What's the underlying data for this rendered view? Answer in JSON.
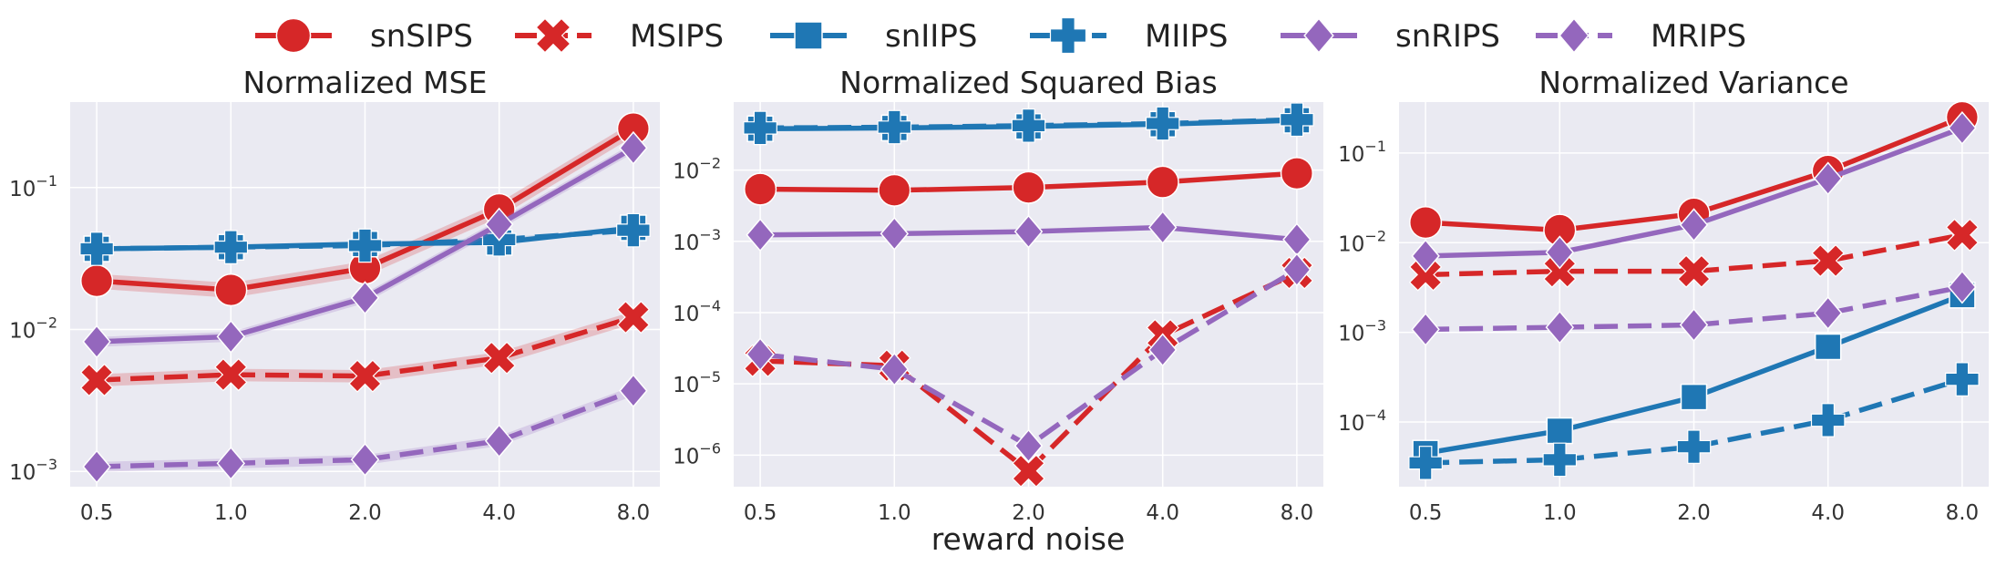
{
  "legend": [
    {
      "key": "snSIPS",
      "label": "snSIPS"
    },
    {
      "key": "MSIPS",
      "label": "MSIPS"
    },
    {
      "key": "snIIPS",
      "label": "snIIPS"
    },
    {
      "key": "MIIPS",
      "label": "MIIPS"
    },
    {
      "key": "snRIPS",
      "label": "snRIPS"
    },
    {
      "key": "MRIPS",
      "label": "MRIPS"
    }
  ],
  "series_style": {
    "snSIPS": {
      "color": "#d62728",
      "dash": "solid",
      "marker": "circle"
    },
    "MSIPS": {
      "color": "#d62728",
      "dash": "dashed",
      "marker": "x"
    },
    "snIIPS": {
      "color": "#1f77b4",
      "dash": "solid",
      "marker": "square"
    },
    "MIIPS": {
      "color": "#1f77b4",
      "dash": "dashed",
      "marker": "plus"
    },
    "snRIPS": {
      "color": "#9467bd",
      "dash": "solid",
      "marker": "diamond"
    },
    "MRIPS": {
      "color": "#9467bd",
      "dash": "dashed",
      "marker": "diamond"
    }
  },
  "colors": {
    "panel_bg": "#eaeaf2",
    "grid": "#ffffff"
  },
  "shared_xlabel": "reward noise",
  "chart_data": [
    {
      "type": "line",
      "title": "Normalized MSE",
      "yscale": "log",
      "ylim": [
        0.00078,
        0.4
      ],
      "yticks": [
        {
          "v": 0.001,
          "base": "10",
          "exp": "−3"
        },
        {
          "v": 0.01,
          "base": "10",
          "exp": "−2"
        },
        {
          "v": 0.1,
          "base": "10",
          "exp": "−1"
        }
      ],
      "categories": [
        "0.5",
        "1.0",
        "2.0",
        "4.0",
        "8.0"
      ],
      "series": [
        {
          "name": "snSIPS",
          "values": [
            0.022,
            0.019,
            0.027,
            0.07,
            0.26
          ],
          "band": 0.12
        },
        {
          "name": "MSIPS",
          "values": [
            0.0044,
            0.0048,
            0.0047,
            0.0063,
            0.0122
          ],
          "band": 0.1
        },
        {
          "name": "snIIPS",
          "values": [
            0.037,
            0.038,
            0.04,
            0.041,
            0.052
          ],
          "band": 0.03
        },
        {
          "name": "MIIPS",
          "values": [
            0.037,
            0.038,
            0.039,
            0.043,
            0.05
          ],
          "band": 0.03
        },
        {
          "name": "snRIPS",
          "values": [
            0.0082,
            0.0089,
            0.0167,
            0.055,
            0.19
          ],
          "band": 0.08
        },
        {
          "name": "MRIPS",
          "values": [
            0.00108,
            0.00114,
            0.00121,
            0.00164,
            0.0037
          ],
          "band": 0.08
        }
      ]
    },
    {
      "type": "line",
      "title": "Normalized Squared Bias",
      "yscale": "log",
      "ylim": [
        3.6e-07,
        0.09
      ],
      "yticks": [
        {
          "v": 1e-06,
          "base": "10",
          "exp": "−6"
        },
        {
          "v": 1e-05,
          "base": "10",
          "exp": "−5"
        },
        {
          "v": 0.0001,
          "base": "10",
          "exp": "−4"
        },
        {
          "v": 0.001,
          "base": "10",
          "exp": "−3"
        },
        {
          "v": 0.01,
          "base": "10",
          "exp": "−2"
        }
      ],
      "categories": [
        "0.5",
        "1.0",
        "2.0",
        "4.0",
        "8.0"
      ],
      "series": [
        {
          "name": "snSIPS",
          "values": [
            0.0054,
            0.0052,
            0.0057,
            0.0068,
            0.009
          ]
        },
        {
          "name": "MSIPS",
          "values": [
            2.1e-05,
            1.8e-05,
            6e-07,
            4.8e-05,
            0.00036
          ]
        },
        {
          "name": "snIIPS",
          "values": [
            0.038,
            0.039,
            0.041,
            0.044,
            0.05
          ]
        },
        {
          "name": "MIIPS",
          "values": [
            0.039,
            0.04,
            0.042,
            0.045,
            0.051
          ]
        },
        {
          "name": "snRIPS",
          "values": [
            0.00123,
            0.00128,
            0.00137,
            0.00157,
            0.00106
          ]
        },
        {
          "name": "MRIPS",
          "values": [
            2.6e-05,
            1.6e-05,
            1.35e-06,
            3e-05,
            0.0004
          ]
        }
      ]
    },
    {
      "type": "line",
      "title": "Normalized Variance",
      "yscale": "log",
      "ylim": [
        1.9e-05,
        0.37
      ],
      "yticks": [
        {
          "v": 0.0001,
          "base": "10",
          "exp": "−4"
        },
        {
          "v": 0.001,
          "base": "10",
          "exp": "−3"
        },
        {
          "v": 0.01,
          "base": "10",
          "exp": "−2"
        },
        {
          "v": 0.1,
          "base": "10",
          "exp": "−1"
        }
      ],
      "categories": [
        "0.5",
        "1.0",
        "2.0",
        "4.0",
        "8.0"
      ],
      "series": [
        {
          "name": "snSIPS",
          "values": [
            0.0168,
            0.0138,
            0.021,
            0.063,
            0.25
          ]
        },
        {
          "name": "MSIPS",
          "values": [
            0.0044,
            0.0048,
            0.0048,
            0.0063,
            0.0122
          ]
        },
        {
          "name": "snIIPS",
          "values": [
            4.5e-05,
            8e-05,
            0.00019,
            0.00069,
            0.0026
          ]
        },
        {
          "name": "MIIPS",
          "values": [
            3.5e-05,
            3.8e-05,
            5.3e-05,
            0.000105,
            0.0003
          ]
        },
        {
          "name": "snRIPS",
          "values": [
            0.0071,
            0.0078,
            0.0158,
            0.052,
            0.19
          ]
        },
        {
          "name": "MRIPS",
          "values": [
            0.00108,
            0.00114,
            0.00121,
            0.00164,
            0.0032
          ]
        }
      ]
    }
  ]
}
